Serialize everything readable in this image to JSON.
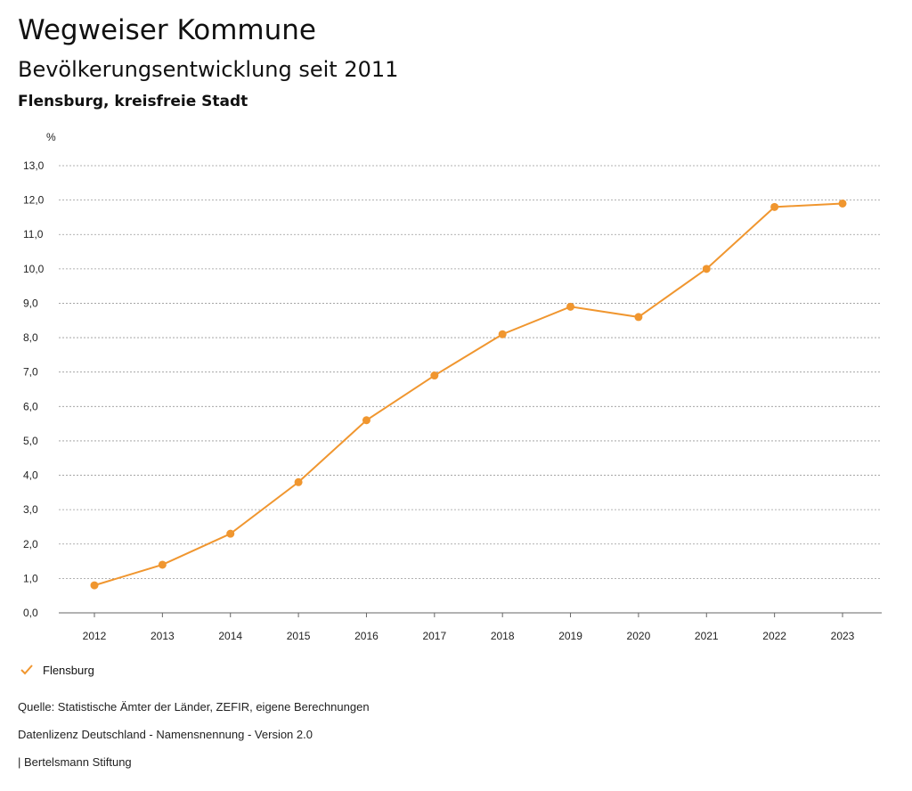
{
  "header": {
    "title": "Wegweiser Kommune",
    "subtitle": "Bevölkerungsentwicklung seit 2011",
    "region": "Flensburg, kreisfreie Stadt"
  },
  "colors": {
    "series": "#f0962f",
    "grid": "#999999",
    "axis": "#666666"
  },
  "chart_data": {
    "type": "line",
    "title": "Bevölkerungsentwicklung seit 2011",
    "ylabel": "%",
    "xlabel": "",
    "categories": [
      "2012",
      "2013",
      "2014",
      "2015",
      "2016",
      "2017",
      "2018",
      "2019",
      "2020",
      "2021",
      "2022",
      "2023"
    ],
    "series": [
      {
        "name": "Flensburg",
        "values": [
          0.8,
          1.4,
          2.3,
          3.8,
          5.6,
          6.9,
          8.1,
          8.9,
          8.6,
          10.0,
          11.8,
          11.9
        ]
      }
    ],
    "yticks": [
      "0,0",
      "1,0",
      "2,0",
      "3,0",
      "4,0",
      "5,0",
      "6,0",
      "7,0",
      "8,0",
      "9,0",
      "10,0",
      "11,0",
      "12,0",
      "13,0"
    ],
    "ylim": [
      0,
      13
    ],
    "grid": true,
    "legend_position": "bottom-left"
  },
  "legend": {
    "label": "Flensburg"
  },
  "footer": {
    "source": "Quelle: Statistische Ämter der Länder, ZEFIR, eigene Berechnungen",
    "license": "Datenlizenz Deutschland - Namensnennung - Version 2.0",
    "publisher": "| Bertelsmann Stiftung"
  }
}
